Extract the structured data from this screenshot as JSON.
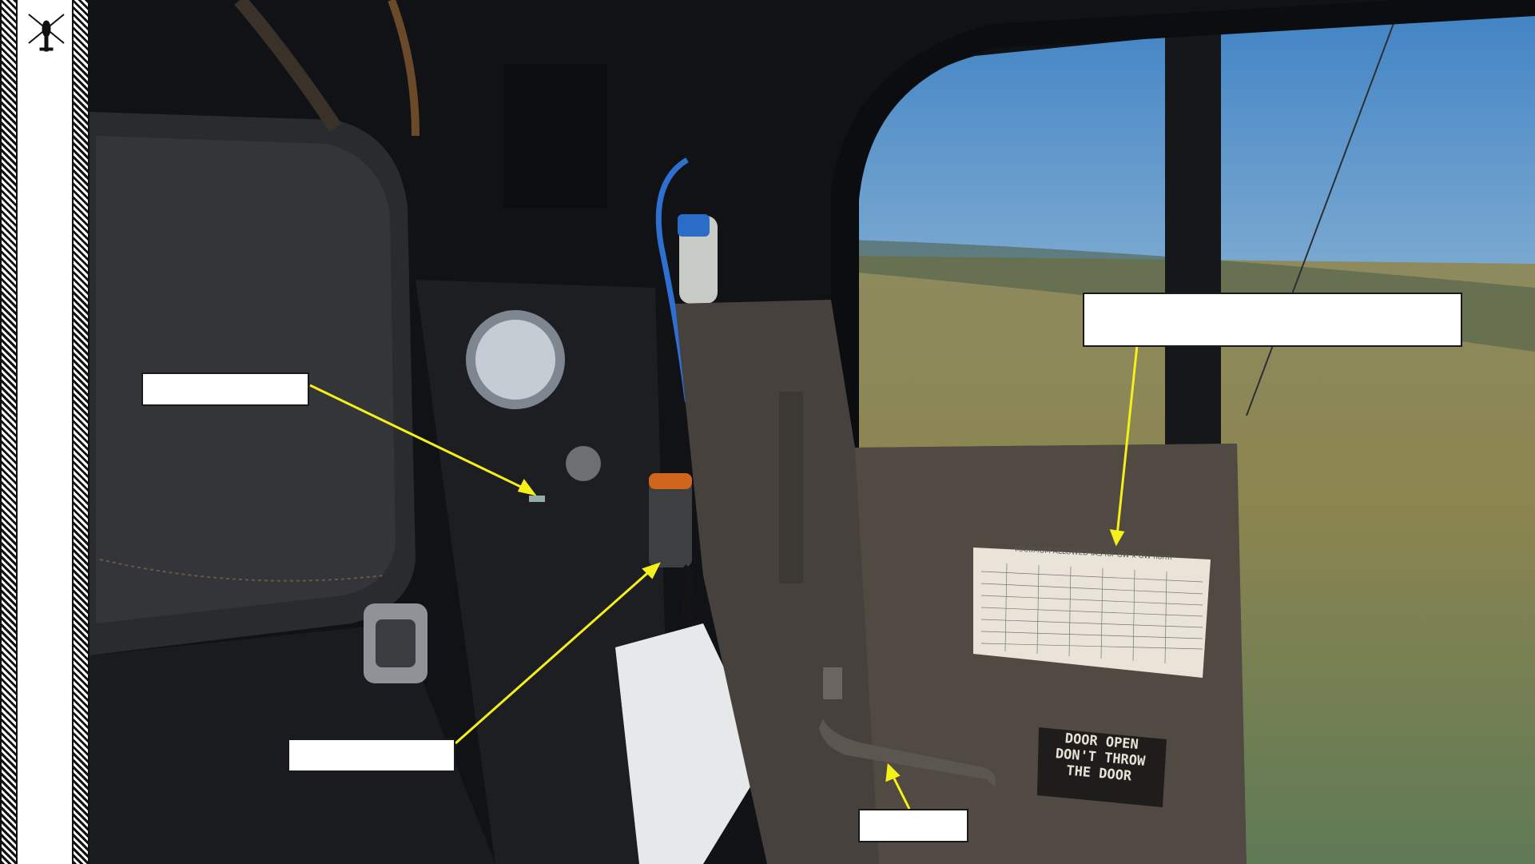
{
  "sidebar": {
    "logo_icon": "helicopter-silhouette-icon"
  },
  "door_placard": {
    "lines": [
      "DOOR OPEN",
      "DON'T THROW",
      "THE DOOR"
    ]
  },
  "airspeed_card": {
    "title": "MAXIMUM ALLOWED IAS for GW x GW norm"
  },
  "callouts": {
    "switch": "",
    "oxygen_connector": "",
    "airspeed_card": "",
    "door_handle": ""
  },
  "colors": {
    "arrow": "#f5f01a",
    "sky": "#5f9ccf",
    "ground": "#8a8a4e"
  }
}
